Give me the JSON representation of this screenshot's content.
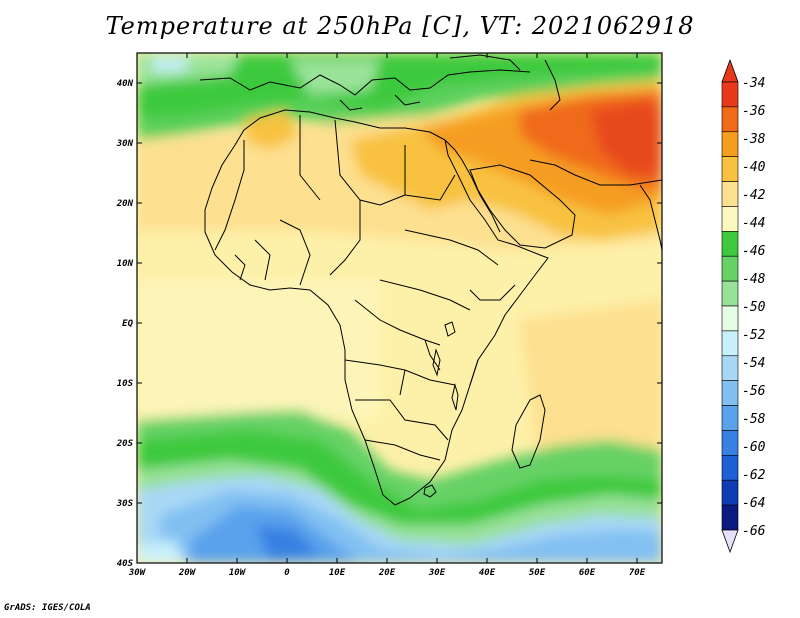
{
  "title": "Temperature at 250hPa [C], VT: 2021062918",
  "credit": "GrADS: IGES/COLA",
  "map": {
    "lat_labels": [
      "40N",
      "30N",
      "20N",
      "10N",
      "EQ",
      "10S",
      "20S",
      "30S",
      "40S"
    ],
    "lon_labels": [
      "30W",
      "20W",
      "10W",
      "0",
      "10E",
      "20E",
      "30E",
      "40E",
      "50E",
      "60E",
      "70E"
    ],
    "extent": {
      "lon": [
        -30,
        75
      ],
      "lat": [
        -40,
        45
      ]
    },
    "field": "Temperature at 250hPa",
    "units": "C"
  },
  "colorbar": {
    "labels": [
      "-34",
      "-36",
      "-38",
      "-40",
      "-42",
      "-44",
      "-46",
      "-48",
      "-50",
      "-52",
      "-54",
      "-56",
      "-58",
      "-60",
      "-62",
      "-64",
      "-66"
    ],
    "colors": [
      "#e83a1a",
      "#f06a1a",
      "#f59d20",
      "#f8c240",
      "#fde090",
      "#fdf8c0",
      "#3ec93e",
      "#66d266",
      "#98e198",
      "#e4fde4",
      "#c8f0fb",
      "#a8d8f5",
      "#82c0f2",
      "#5aa2ec",
      "#3880e2",
      "#1e5fd6",
      "#103cb3",
      "#0a1a80"
    ],
    "top_arrow_color": "#e83a1a",
    "bottom_arrow_color": "#e6e0fa"
  }
}
